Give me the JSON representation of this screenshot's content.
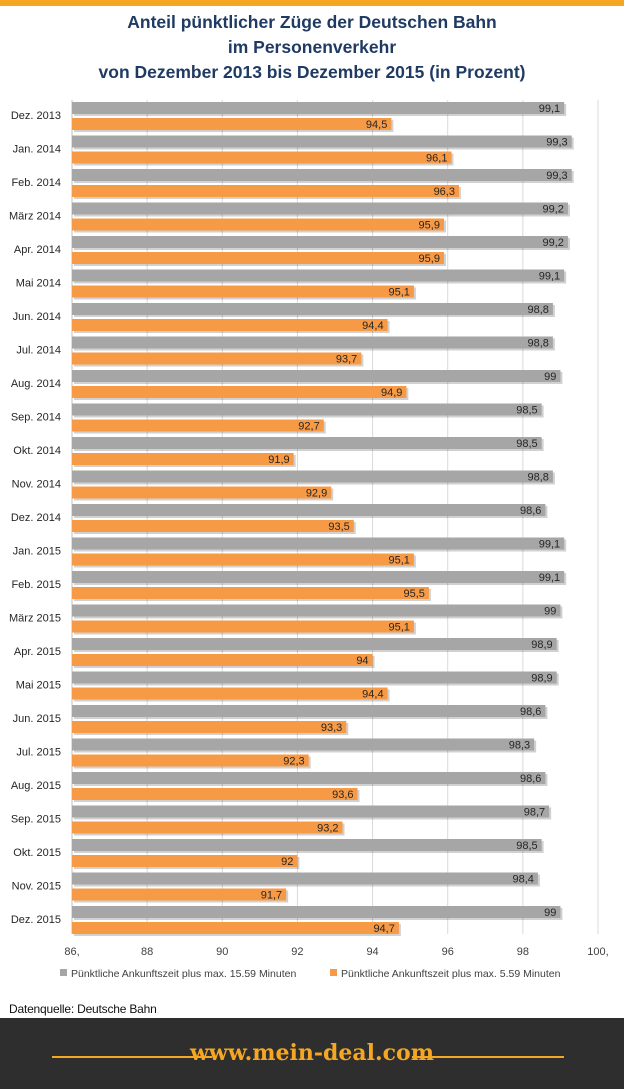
{
  "title_lines": [
    "Anteil pünktlicher Züge der Deutschen Bahn",
    "im Personenverkehr",
    "von Dezember 2013 bis Dezember 2015 (in Prozent)"
  ],
  "source": "Datenquelle: Deutsche Bahn",
  "footer_brand": "www.mein-deal.com",
  "colors": {
    "series_15": "#a6a6a6",
    "series_5": "#f79a46",
    "title": "#1f3a63",
    "accent": "#f5a623"
  },
  "chart_data": {
    "type": "bar",
    "orientation": "horizontal",
    "title": "Anteil pünktlicher Züge der Deutschen Bahn im Personenverkehr von Dezember 2013 bis Dezember 2015 (in Prozent)",
    "categories": [
      "Dez. 2013",
      "Jan. 2014",
      "Feb. 2014",
      "März 2014",
      "Apr. 2014",
      "Mai 2014",
      "Jun. 2014",
      "Jul. 2014",
      "Aug. 2014",
      "Sep. 2014",
      "Okt. 2014",
      "Nov. 2014",
      "Dez. 2014",
      "Jan. 2015",
      "Feb. 2015",
      "März 2015",
      "Apr. 2015",
      "Mai 2015",
      "Jun. 2015",
      "Jul. 2015",
      "Aug. 2015",
      "Sep. 2015",
      "Okt. 2015",
      "Nov. 2015",
      "Dez. 2015"
    ],
    "series": [
      {
        "name": "Pünktliche Ankunftszeit plus max. 15.59 Minuten",
        "values": [
          99.1,
          99.3,
          99.3,
          99.2,
          99.2,
          99.1,
          98.8,
          98.8,
          99,
          98.5,
          98.5,
          98.8,
          98.6,
          99.1,
          99.1,
          99,
          98.9,
          98.9,
          98.6,
          98.3,
          98.6,
          98.7,
          98.5,
          98.4,
          99
        ]
      },
      {
        "name": "Pünktliche Ankunftszeit plus max. 5.59 Minuten",
        "values": [
          94.5,
          96.1,
          96.3,
          95.9,
          95.9,
          95.1,
          94.4,
          93.7,
          94.9,
          92.7,
          91.9,
          92.9,
          93.5,
          95.1,
          95.5,
          95.1,
          94,
          94.4,
          93.3,
          92.3,
          93.6,
          93.2,
          92,
          91.7,
          94.7
        ]
      }
    ],
    "xlim": [
      86,
      100
    ],
    "xticks": [
      86,
      88,
      90,
      92,
      94,
      96,
      98,
      100
    ],
    "xtick_labels": [
      "86,",
      "88",
      "90",
      "92",
      "94",
      "96",
      "98",
      "100,"
    ],
    "grid": true,
    "legend": "bottom"
  }
}
